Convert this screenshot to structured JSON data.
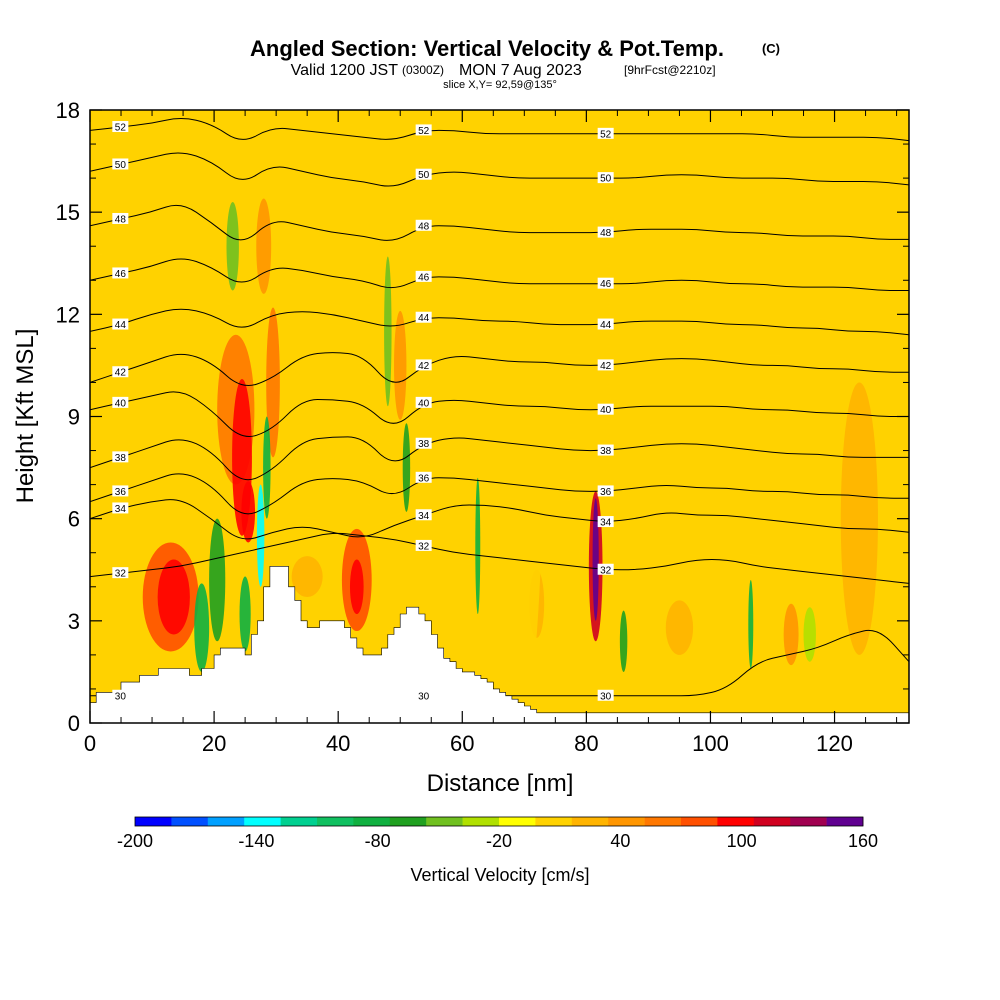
{
  "chart_data": {
    "type": "heatmap",
    "title": "Angled Section: Vertical Velocity & Pot.Temp.",
    "title_suffix": "(C)",
    "subtitle_valid": "Valid 1200 JST",
    "subtitle_utc": "(0300Z)",
    "subtitle_date": "MON 7 Aug 2023",
    "subtitle_fcst": "[9hrFcst@2210z]",
    "slice": "slice X,Y= 92,59@135°",
    "xlabel": "Distance [nm]",
    "ylabel": "Height [Kft MSL]",
    "xlim": [
      0,
      132
    ],
    "ylim": [
      0,
      18
    ],
    "x_ticks": [
      "0",
      "20",
      "40",
      "60",
      "80",
      "100",
      "120"
    ],
    "y_ticks": [
      "0",
      "3",
      "6",
      "9",
      "12",
      "15",
      "18"
    ],
    "colorbar_label": "Vertical Velocity [cm/s]",
    "colorbar_ticks": [
      "-200",
      "-140",
      "-80",
      "-20",
      "40",
      "100",
      "160"
    ],
    "colorbar_range": [
      -200,
      160
    ],
    "colorbar_colors": [
      "#0000ff",
      "#0050ff",
      "#00a0ff",
      "#00ffff",
      "#00d090",
      "#10c060",
      "#10b040",
      "#20a020",
      "#70c020",
      "#b0e000",
      "#ffff00",
      "#ffd200",
      "#ffb400",
      "#ff9600",
      "#ff7800",
      "#ff5000",
      "#ff0000",
      "#d00020",
      "#a00050",
      "#600090"
    ],
    "background_color": "#ffd200",
    "contours": [
      {
        "label": "30",
        "y": [
          0.8,
          0.8,
          0.8,
          0.8,
          0.8,
          0.8,
          0.8,
          0.8,
          0.8,
          0.8,
          0.8,
          0.8,
          0.8,
          0.8,
          0.8,
          0.8,
          0.8,
          0.8,
          0.8,
          0.8,
          0.8,
          1.0,
          1.8,
          2.0,
          2.2,
          2.6,
          2.8,
          1.8
        ]
      },
      {
        "label": "32",
        "y": [
          4.3,
          4.4,
          4.5,
          4.6,
          4.8,
          5.0,
          5.2,
          5.4,
          5.6,
          5.5,
          5.4,
          5.2,
          5.0,
          4.9,
          4.8,
          4.7,
          4.6,
          4.5,
          4.5,
          4.6,
          4.8,
          4.8,
          4.6,
          4.5,
          4.4,
          4.3,
          4.2,
          4.1
        ]
      },
      {
        "label": "34",
        "y": [
          6.0,
          6.3,
          6.5,
          6.6,
          6.0,
          5.3,
          5.6,
          5.8,
          5.6,
          5.4,
          5.8,
          6.1,
          6.4,
          6.4,
          6.3,
          6.1,
          6.0,
          5.9,
          6.0,
          6.2,
          6.1,
          6.1,
          6.0,
          5.9,
          5.8,
          5.7,
          5.7,
          5.6
        ]
      },
      {
        "label": "36",
        "y": [
          6.5,
          6.8,
          7.1,
          7.4,
          7.0,
          6.0,
          6.4,
          7.1,
          7.2,
          7.1,
          6.6,
          7.2,
          7.2,
          7.1,
          7.0,
          6.9,
          6.8,
          6.8,
          6.9,
          7.0,
          6.9,
          6.9,
          6.8,
          6.8,
          6.7,
          6.7,
          6.6,
          6.6
        ]
      },
      {
        "label": "38",
        "y": [
          7.5,
          7.8,
          8.1,
          8.4,
          8.0,
          7.0,
          7.4,
          8.3,
          8.4,
          8.4,
          7.5,
          8.2,
          8.4,
          8.3,
          8.2,
          8.1,
          8.0,
          8.0,
          8.1,
          8.2,
          8.2,
          8.1,
          8.0,
          7.9,
          7.9,
          7.8,
          7.8,
          7.8
        ]
      },
      {
        "label": "40",
        "y": [
          9.2,
          9.4,
          9.6,
          9.8,
          9.2,
          8.3,
          8.6,
          9.5,
          9.5,
          9.4,
          8.6,
          9.4,
          9.5,
          9.4,
          9.3,
          9.3,
          9.2,
          9.2,
          9.3,
          9.3,
          9.3,
          9.3,
          9.2,
          9.2,
          9.1,
          9.1,
          9.0,
          9.0
        ]
      },
      {
        "label": "42",
        "y": [
          10.0,
          10.3,
          10.6,
          10.9,
          10.6,
          9.8,
          10.1,
          10.8,
          10.9,
          10.8,
          9.8,
          10.5,
          10.8,
          10.7,
          10.6,
          10.6,
          10.5,
          10.5,
          10.6,
          10.7,
          10.7,
          10.6,
          10.5,
          10.5,
          10.4,
          10.4,
          10.3,
          10.3
        ]
      },
      {
        "label": "44",
        "y": [
          11.5,
          11.7,
          12.0,
          12.2,
          12.0,
          11.5,
          12.0,
          12.1,
          12.0,
          11.8,
          11.6,
          11.9,
          11.9,
          11.8,
          11.8,
          11.7,
          11.7,
          11.7,
          11.8,
          11.8,
          11.8,
          11.7,
          11.7,
          11.6,
          11.6,
          11.5,
          11.5,
          11.4
        ]
      },
      {
        "label": "46",
        "y": [
          13.0,
          13.2,
          13.4,
          13.7,
          13.4,
          12.8,
          13.4,
          13.3,
          13.1,
          13.0,
          12.7,
          13.1,
          13.1,
          13.0,
          12.9,
          12.9,
          12.9,
          12.9,
          12.9,
          13.0,
          13.0,
          12.9,
          12.9,
          12.8,
          12.8,
          12.8,
          12.7,
          12.7
        ]
      },
      {
        "label": "48",
        "y": [
          14.6,
          14.8,
          15.0,
          15.3,
          14.7,
          14.0,
          14.8,
          14.6,
          14.4,
          14.3,
          14.1,
          14.6,
          14.6,
          14.5,
          14.4,
          14.4,
          14.4,
          14.4,
          14.5,
          14.5,
          14.5,
          14.4,
          14.4,
          14.3,
          14.3,
          14.3,
          14.2,
          14.2
        ]
      },
      {
        "label": "50",
        "y": [
          16.2,
          16.4,
          16.6,
          16.8,
          16.5,
          15.8,
          16.4,
          16.2,
          16.0,
          15.9,
          15.7,
          16.1,
          16.2,
          16.1,
          16.0,
          16.0,
          16.0,
          16.0,
          16.0,
          16.1,
          16.1,
          16.0,
          16.0,
          16.0,
          15.9,
          15.9,
          15.9,
          15.8
        ]
      },
      {
        "label": "52",
        "y": [
          17.4,
          17.5,
          17.6,
          17.8,
          17.6,
          17.0,
          17.5,
          17.4,
          17.3,
          17.2,
          17.1,
          17.4,
          17.4,
          17.3,
          17.3,
          17.3,
          17.3,
          17.3,
          17.3,
          17.3,
          17.3,
          17.3,
          17.3,
          17.2,
          17.2,
          17.2,
          17.2,
          17.1
        ]
      }
    ],
    "terrain": {
      "x": [
        0,
        1,
        2,
        3,
        4,
        5,
        6,
        7,
        8,
        9,
        10,
        11,
        12,
        13,
        14,
        15,
        16,
        17,
        18,
        19,
        20,
        21,
        22,
        23,
        24,
        25,
        26,
        27,
        28,
        29,
        30,
        31,
        32,
        33,
        34,
        35,
        36,
        37,
        38,
        39,
        40,
        41,
        42,
        43,
        44,
        45,
        46,
        47,
        48,
        49,
        50,
        51,
        52,
        53,
        54,
        55,
        56,
        57,
        58,
        59,
        60,
        61,
        62,
        63,
        64,
        65,
        66,
        67,
        68,
        69,
        70,
        71,
        72,
        132
      ],
      "h": [
        0.6,
        0.9,
        0.9,
        0.9,
        0.9,
        1.2,
        1.2,
        1.2,
        1.4,
        1.4,
        1.4,
        1.6,
        1.6,
        1.6,
        1.6,
        1.6,
        1.4,
        1.4,
        1.6,
        1.6,
        2.0,
        2.2,
        2.2,
        2.2,
        2.2,
        2.0,
        2.6,
        3.0,
        4.0,
        4.6,
        4.6,
        4.6,
        4.0,
        3.6,
        3.0,
        2.8,
        2.8,
        3.0,
        3.0,
        3.0,
        3.0,
        2.8,
        2.5,
        2.2,
        2.0,
        2.0,
        2.0,
        2.2,
        2.6,
        2.8,
        3.2,
        3.4,
        3.4,
        3.2,
        3.0,
        2.6,
        2.2,
        1.9,
        1.8,
        1.6,
        1.5,
        1.5,
        1.4,
        1.3,
        1.2,
        1.0,
        0.9,
        0.8,
        0.7,
        0.6,
        0.5,
        0.4,
        0.3,
        0.3
      ]
    },
    "cells": [
      {
        "x": 13,
        "y": 3.7,
        "rx": 4.5,
        "ry": 1.6,
        "value": 70
      },
      {
        "x": 13.5,
        "y": 3.7,
        "rx": 2.6,
        "ry": 1.1,
        "value": 100
      },
      {
        "x": 23.5,
        "y": 9.2,
        "rx": 3,
        "ry": 2.2,
        "value": 60
      },
      {
        "x": 24.5,
        "y": 7.8,
        "rx": 1.6,
        "ry": 2.3,
        "value": 90
      },
      {
        "x": 25.5,
        "y": 6.2,
        "rx": 1.1,
        "ry": 0.9,
        "value": 100
      },
      {
        "x": 29.5,
        "y": 10,
        "rx": 1.1,
        "ry": 2.2,
        "value": 55
      },
      {
        "x": 43,
        "y": 4.2,
        "rx": 2.4,
        "ry": 1.5,
        "value": 80
      },
      {
        "x": 43,
        "y": 4,
        "rx": 1.1,
        "ry": 0.8,
        "value": 100
      },
      {
        "x": 81.5,
        "y": 4.6,
        "rx": 1.1,
        "ry": 2.2,
        "value": 110
      },
      {
        "x": 81.5,
        "y": 4.8,
        "rx": 0.5,
        "ry": 1.8,
        "value": 150
      },
      {
        "x": 113,
        "y": 2.6,
        "rx": 1.2,
        "ry": 0.9,
        "value": 50
      },
      {
        "x": 28,
        "y": 14,
        "rx": 1.2,
        "ry": 1.4,
        "value": 50
      },
      {
        "x": 50,
        "y": 10.5,
        "rx": 1,
        "ry": 1.6,
        "value": 50
      },
      {
        "x": 35,
        "y": 4.3,
        "rx": 2.5,
        "ry": 0.6,
        "value": 30
      },
      {
        "x": 72,
        "y": 3.5,
        "rx": 1.2,
        "ry": 1.0,
        "value": 30
      },
      {
        "x": 95,
        "y": 2.8,
        "rx": 2.2,
        "ry": 0.8,
        "value": 30
      },
      {
        "x": 124,
        "y": 6,
        "rx": 3,
        "ry": 4,
        "value": 30
      },
      {
        "x": 18,
        "y": 2.8,
        "rx": 1.2,
        "ry": 1.3,
        "value": -80
      },
      {
        "x": 20.5,
        "y": 4.2,
        "rx": 1.3,
        "ry": 1.8,
        "value": -60
      },
      {
        "x": 25,
        "y": 3.2,
        "rx": 0.9,
        "ry": 1.1,
        "value": -80
      },
      {
        "x": 27.5,
        "y": 5.5,
        "rx": 0.6,
        "ry": 1.5,
        "value": -140
      },
      {
        "x": 28.5,
        "y": 7.5,
        "rx": 0.6,
        "ry": 1.5,
        "value": -80
      },
      {
        "x": 23,
        "y": 14,
        "rx": 1.0,
        "ry": 1.3,
        "value": -40
      },
      {
        "x": 48,
        "y": 11.5,
        "rx": 0.6,
        "ry": 2.2,
        "value": -40
      },
      {
        "x": 51,
        "y": 7.5,
        "rx": 0.6,
        "ry": 1.3,
        "value": -60
      },
      {
        "x": 62.5,
        "y": 5.2,
        "rx": 0.4,
        "ry": 2.0,
        "value": -80
      },
      {
        "x": 86,
        "y": 2.4,
        "rx": 0.6,
        "ry": 0.9,
        "value": -60
      },
      {
        "x": 106.5,
        "y": 2.9,
        "rx": 0.4,
        "ry": 1.3,
        "value": -80
      },
      {
        "x": 116,
        "y": 2.6,
        "rx": 1.0,
        "ry": 0.8,
        "value": -30
      },
      {
        "x": 68,
        "y": 8,
        "rx": 5,
        "ry": 9,
        "value": 0
      },
      {
        "x": 100,
        "y": 12,
        "rx": 6,
        "ry": 7,
        "value": 0
      },
      {
        "x": 115,
        "y": 15,
        "rx": 4,
        "ry": 3,
        "value": 0
      }
    ]
  }
}
